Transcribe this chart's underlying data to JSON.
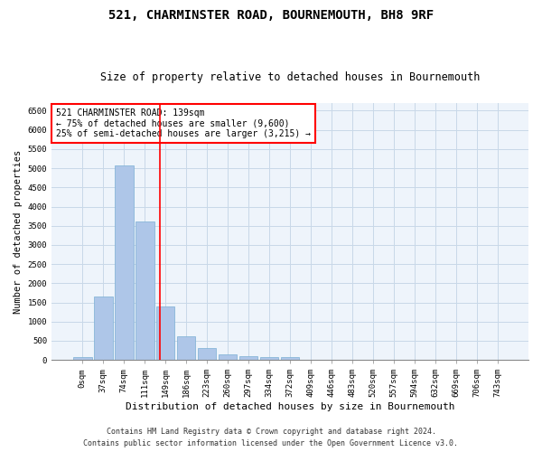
{
  "title1": "521, CHARMINSTER ROAD, BOURNEMOUTH, BH8 9RF",
  "title2": "Size of property relative to detached houses in Bournemouth",
  "xlabel": "Distribution of detached houses by size in Bournemouth",
  "ylabel": "Number of detached properties",
  "bar_values": [
    75,
    1650,
    5075,
    3600,
    1400,
    620,
    300,
    150,
    100,
    65,
    65,
    0,
    0,
    0,
    0,
    0,
    0,
    0,
    0,
    0,
    0
  ],
  "categories": [
    "0sqm",
    "37sqm",
    "74sqm",
    "111sqm",
    "149sqm",
    "186sqm",
    "223sqm",
    "260sqm",
    "297sqm",
    "334sqm",
    "372sqm",
    "409sqm",
    "446sqm",
    "483sqm",
    "520sqm",
    "557sqm",
    "594sqm",
    "632sqm",
    "669sqm",
    "706sqm",
    "743sqm"
  ],
  "bar_color": "#aec6e8",
  "bar_edge_color": "#7aafd4",
  "grid_color": "#c8d8e8",
  "bg_color": "#eef4fb",
  "vline_color": "red",
  "annotation_text": "521 CHARMINSTER ROAD: 139sqm\n← 75% of detached houses are smaller (9,600)\n25% of semi-detached houses are larger (3,215) →",
  "annotation_box_color": "white",
  "annotation_box_edge": "red",
  "ylim": [
    0,
    6700
  ],
  "yticks": [
    0,
    500,
    1000,
    1500,
    2000,
    2500,
    3000,
    3500,
    4000,
    4500,
    5000,
    5500,
    6000,
    6500
  ],
  "footer1": "Contains HM Land Registry data © Crown copyright and database right 2024.",
  "footer2": "Contains public sector information licensed under the Open Government Licence v3.0.",
  "title1_fontsize": 10,
  "title2_fontsize": 8.5,
  "xlabel_fontsize": 8,
  "ylabel_fontsize": 7.5,
  "tick_fontsize": 6.5,
  "footer_fontsize": 6,
  "annotation_fontsize": 7
}
